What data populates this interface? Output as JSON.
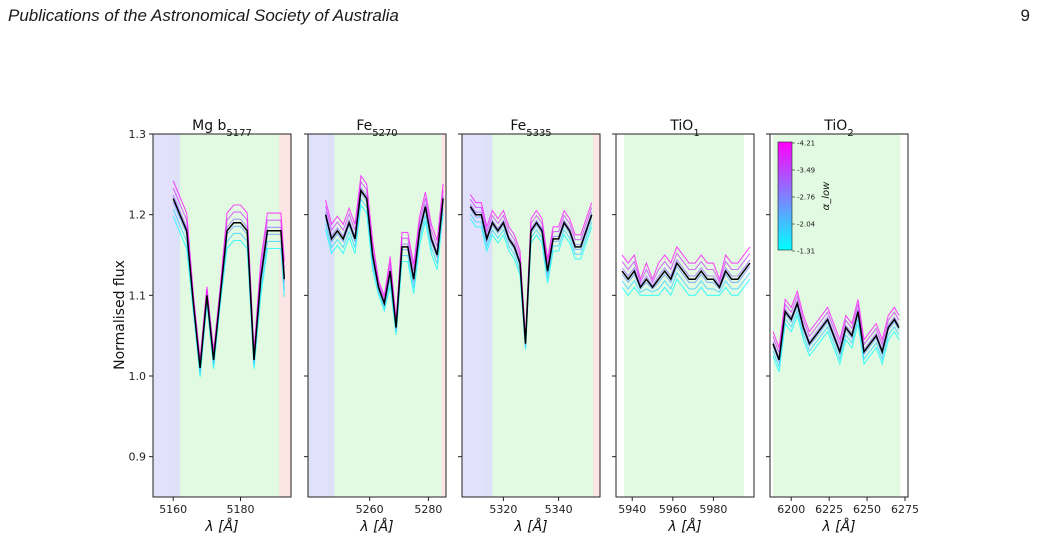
{
  "header": {
    "journal": "Publications of the Astronomical Society of Australia",
    "page_number": "9"
  },
  "chart_data": {
    "type": "line",
    "ylabel": "Normalised flux",
    "xlabel": "λ [Å]",
    "ylim": [
      0.85,
      1.3
    ],
    "yticks": [
      0.9,
      1.0,
      1.1,
      1.2,
      1.3
    ],
    "colorbar": {
      "label": "α_low",
      "ticks": [
        "-4.21",
        "-3.49",
        "-2.76",
        "-2.04",
        "-1.31"
      ],
      "color_top": "#ff00ff",
      "color_bottom": "#00ffff"
    },
    "region_colors": {
      "blue": "#dcdcfa",
      "green": "#e2fae2",
      "red": "#fde2e2"
    },
    "panels": [
      {
        "title_main": "Mg b",
        "title_sub": "5177",
        "xlim": [
          5154,
          5195
        ],
        "xticks": [
          5160,
          5180
        ],
        "blue_band": [
          5154,
          5162
        ],
        "green_band": [
          5160.5,
          5193
        ],
        "red_band": [
          5191.5,
          5195
        ],
        "x": [
          5160,
          5162,
          5164,
          5166,
          5168,
          5170,
          5172,
          5174,
          5176,
          5178,
          5180,
          5182,
          5184,
          5186,
          5188,
          5190,
          5192,
          5193
        ],
        "y": [
          1.22,
          1.2,
          1.18,
          1.09,
          1.01,
          1.1,
          1.02,
          1.1,
          1.18,
          1.19,
          1.19,
          1.18,
          1.02,
          1.12,
          1.18,
          1.18,
          1.18,
          1.12
        ],
        "spread": 0.022
      },
      {
        "title_main": "Fe",
        "title_sub": "5270",
        "xlim": [
          5239,
          5286
        ],
        "xticks": [
          5260,
          5280
        ],
        "blue_band": [
          5239,
          5248
        ],
        "green_band": [
          5245.5,
          5284.5
        ],
        "red_band": [
          5284.5,
          5286
        ],
        "x": [
          5245,
          5247,
          5249,
          5251,
          5253,
          5255,
          5257,
          5259,
          5261,
          5263,
          5265,
          5267,
          5269,
          5271,
          5273,
          5275,
          5277,
          5279,
          5281,
          5283,
          5285
        ],
        "y": [
          1.2,
          1.17,
          1.18,
          1.17,
          1.19,
          1.17,
          1.23,
          1.22,
          1.15,
          1.11,
          1.09,
          1.13,
          1.06,
          1.16,
          1.16,
          1.12,
          1.18,
          1.21,
          1.17,
          1.15,
          1.22
        ],
        "spread": 0.018
      },
      {
        "title_main": "Fe",
        "title_sub": "5335",
        "xlim": [
          5305,
          5355
        ],
        "xticks": [
          5320,
          5340
        ],
        "blue_band": [
          5305,
          5316
        ],
        "green_band": [
          5312.5,
          5353
        ],
        "red_band": [
          5352.5,
          5355
        ],
        "x": [
          5308,
          5310,
          5312,
          5314,
          5316,
          5318,
          5320,
          5322,
          5324,
          5326,
          5328,
          5330,
          5332,
          5334,
          5336,
          5338,
          5340,
          5342,
          5344,
          5346,
          5348,
          5350,
          5352
        ],
        "y": [
          1.21,
          1.2,
          1.2,
          1.17,
          1.19,
          1.18,
          1.19,
          1.17,
          1.16,
          1.14,
          1.04,
          1.18,
          1.19,
          1.18,
          1.13,
          1.17,
          1.17,
          1.19,
          1.18,
          1.16,
          1.16,
          1.18,
          1.2
        ],
        "spread": 0.015
      },
      {
        "title_main": "TiO",
        "title_sub": "1",
        "xlim": [
          5932,
          6000
        ],
        "xticks": [
          5940,
          5960,
          5980
        ],
        "green_band": [
          5936,
          5995
        ],
        "x": [
          5935,
          5938,
          5941,
          5944,
          5947,
          5950,
          5953,
          5956,
          5959,
          5962,
          5965,
          5968,
          5971,
          5974,
          5977,
          5980,
          5983,
          5986,
          5989,
          5992,
          5995,
          5998
        ],
        "y": [
          1.13,
          1.12,
          1.13,
          1.11,
          1.12,
          1.11,
          1.12,
          1.13,
          1.12,
          1.14,
          1.13,
          1.12,
          1.12,
          1.13,
          1.12,
          1.12,
          1.11,
          1.13,
          1.12,
          1.12,
          1.13,
          1.14
        ],
        "spread": 0.02
      },
      {
        "title_main": "TiO",
        "title_sub": "2",
        "xlim": [
          6186,
          6277
        ],
        "xticks": [
          6200,
          6225,
          6250,
          6275
        ],
        "green_band": [
          6188,
          6272
        ],
        "x": [
          6188,
          6192,
          6196,
          6200,
          6204,
          6208,
          6212,
          6216,
          6220,
          6224,
          6228,
          6232,
          6236,
          6240,
          6244,
          6248,
          6252,
          6256,
          6260,
          6264,
          6268,
          6271
        ],
        "y": [
          1.04,
          1.02,
          1.08,
          1.07,
          1.09,
          1.06,
          1.04,
          1.05,
          1.06,
          1.07,
          1.05,
          1.03,
          1.06,
          1.05,
          1.08,
          1.03,
          1.04,
          1.05,
          1.03,
          1.06,
          1.07,
          1.06
        ],
        "spread": 0.03
      }
    ]
  }
}
